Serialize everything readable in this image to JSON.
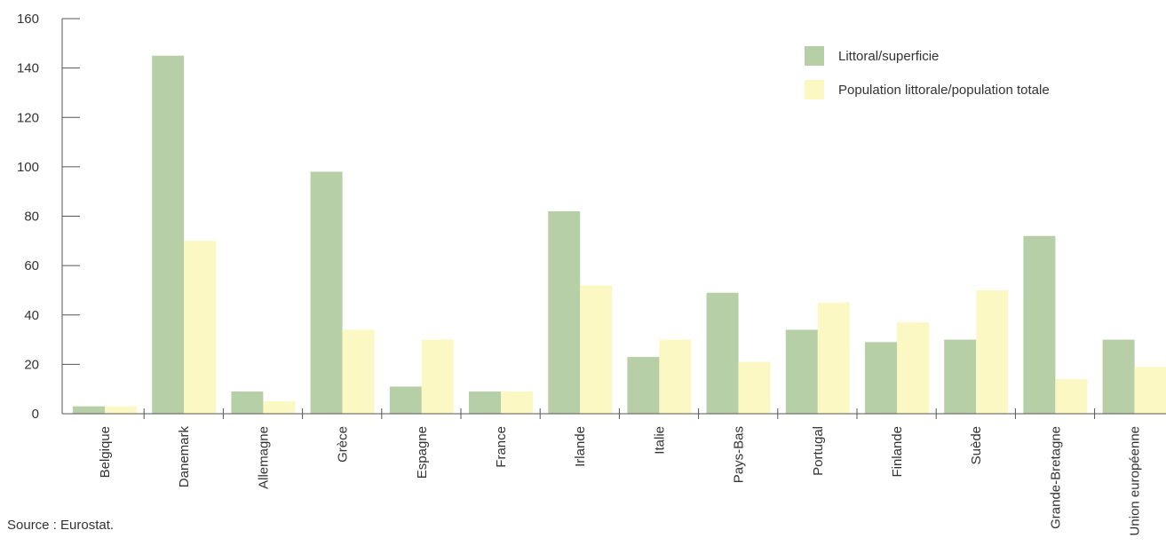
{
  "chart_data": {
    "type": "bar",
    "categories": [
      "Belgique",
      "Danemark",
      "Allemagne",
      "Grèce",
      "Espagne",
      "France",
      "Irlande",
      "Italie",
      "Pays-Bas",
      "Portugal",
      "Finlande",
      "Suède",
      "Grande-Bretagne",
      "Union européenne"
    ],
    "series": [
      {
        "name": "Littoral/superficie",
        "color": "#b7cfa6",
        "values": [
          3,
          145,
          9,
          98,
          11,
          9,
          82,
          23,
          49,
          34,
          29,
          30,
          72,
          30
        ]
      },
      {
        "name": "Population littorale/population totale",
        "color": "#fbf8c4",
        "values": [
          3,
          70,
          5,
          34,
          30,
          9,
          52,
          30,
          21,
          45,
          37,
          50,
          14,
          19
        ]
      }
    ],
    "ylim": [
      0,
      160
    ],
    "yticks": [
      0,
      20,
      40,
      60,
      80,
      100,
      120,
      140,
      160
    ],
    "grid": false,
    "legend_position": "top-right"
  },
  "source_note": "Source : Eurostat."
}
